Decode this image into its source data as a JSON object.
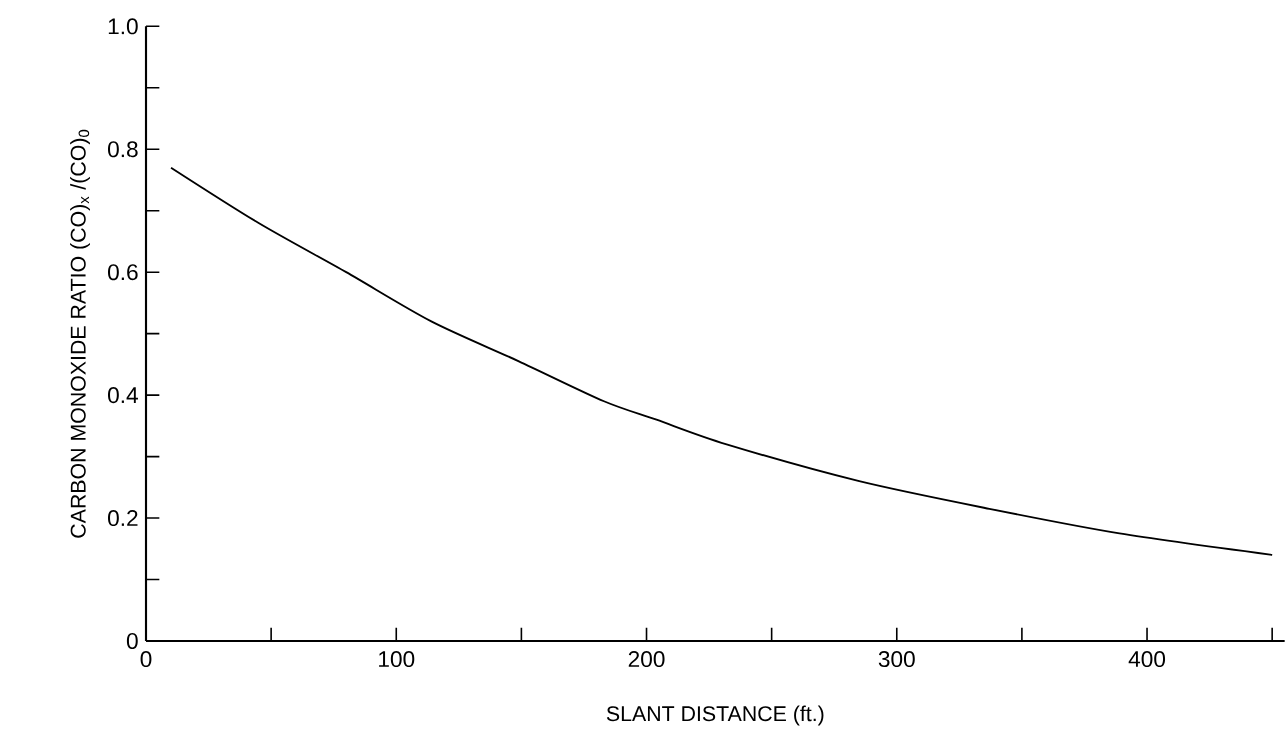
{
  "chart_data": {
    "type": "line",
    "xlabel": "SLANT DISTANCE (ft.)",
    "ylabel": "CARBON MONOXIDE RATIO (CO)$_{x}$ /(CO)$_{0}$",
    "x": [
      10,
      45,
      80,
      114,
      149,
      183,
      204,
      232,
      285,
      337,
      389,
      450
    ],
    "series": [
      {
        "color": "#000000",
        "values": [
          0.77,
          0.68,
          0.6,
          0.52,
          0.455,
          0.39,
          0.36,
          0.32,
          0.26,
          0.215,
          0.175,
          0.14
        ]
      }
    ],
    "xlim": [
      0,
      455
    ],
    "ylim": [
      0,
      1.0
    ],
    "xticks": [
      0,
      {
        "value": 50,
        "label": null
      },
      100,
      {
        "value": 150,
        "label": null
      },
      200,
      {
        "value": 250,
        "label": null
      },
      300,
      {
        "value": 350,
        "label": null
      },
      400,
      {
        "value": 450,
        "label": null
      }
    ],
    "yticks": [
      0,
      {
        "value": 0.1,
        "label": null
      },
      0.2,
      {
        "value": 0.3,
        "label": null
      },
      0.4,
      {
        "value": 0.5,
        "label": null
      },
      0.6,
      {
        "value": 0.7,
        "label": null
      },
      0.8,
      {
        "value": 0.9,
        "label": null
      },
      {
        "value": 1.0,
        "label": "1.0"
      }
    ],
    "grid": false,
    "marker": "none",
    "line_style": "solid"
  }
}
